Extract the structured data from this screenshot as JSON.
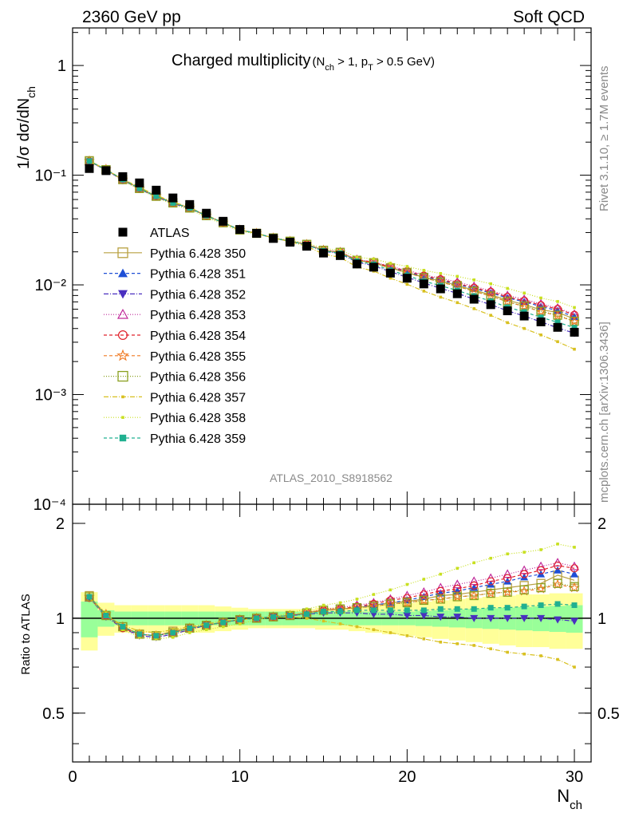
{
  "header": {
    "left": "2360 GeV pp",
    "right": "Soft QCD"
  },
  "side_labels": {
    "rivet": "Rivet 3.1.10, ≥ 1.7M events",
    "mcplots": "mcplots.cern.ch [arXiv:1306.3436]"
  },
  "chart_data": {
    "type": "scatter",
    "title": "Charged multiplicity",
    "title_cuts": "(N_ch > 1, p_T > 0.5 GeV)",
    "analysis_label": "ATLAS_2010_S8918562",
    "xlabel": "N_ch",
    "ylabel": "1/σ dσ/dN_ch",
    "ratio_ylabel": "Ratio to ATLAS",
    "xlim": [
      0,
      31
    ],
    "ylim": [
      0.0001,
      2.2
    ],
    "yscale": "log",
    "ratio_ylim": [
      0.35,
      2.3
    ],
    "x_ticks": [
      0,
      10,
      20,
      30
    ],
    "y_ticks": [
      "10⁻⁴",
      "10⁻³",
      "10⁻²",
      "10⁻¹",
      "1"
    ],
    "ratio_ticks": [
      "0.5",
      "1",
      "2"
    ],
    "legend_placement": "left-middle",
    "x": [
      1,
      2,
      3,
      4,
      5,
      6,
      7,
      8,
      9,
      10,
      11,
      12,
      13,
      14,
      15,
      16,
      17,
      18,
      19,
      20,
      21,
      22,
      23,
      24,
      25,
      26,
      27,
      28,
      29,
      30
    ],
    "data": {
      "name": "ATLAS",
      "values": [
        0.115,
        0.11,
        0.097,
        0.085,
        0.073,
        0.062,
        0.054,
        0.045,
        0.038,
        0.032,
        0.0295,
        0.0265,
        0.0245,
        0.0225,
        0.0195,
        0.0185,
        0.0155,
        0.0145,
        0.0128,
        0.0115,
        0.0102,
        0.0092,
        0.0083,
        0.0074,
        0.0066,
        0.0058,
        0.0052,
        0.0046,
        0.0041,
        0.0037
      ],
      "band_inner": [
        0.13,
        0.06,
        0.05,
        0.05,
        0.05,
        0.05,
        0.05,
        0.05,
        0.05,
        0.05,
        0.05,
        0.05,
        0.05,
        0.05,
        0.05,
        0.05,
        0.05,
        0.05,
        0.05,
        0.05,
        0.055,
        0.06,
        0.065,
        0.07,
        0.075,
        0.08,
        0.085,
        0.09,
        0.095,
        0.1
      ],
      "band_outer": [
        0.21,
        0.12,
        0.1,
        0.1,
        0.1,
        0.1,
        0.1,
        0.1,
        0.09,
        0.08,
        0.07,
        0.07,
        0.07,
        0.07,
        0.08,
        0.08,
        0.09,
        0.1,
        0.11,
        0.12,
        0.13,
        0.14,
        0.15,
        0.16,
        0.17,
        0.18,
        0.19,
        0.19,
        0.2,
        0.2
      ]
    },
    "series": [
      {
        "name": "Pythia 6.428 350",
        "color": "#b8a040",
        "marker": "square-open",
        "dash": "",
        "ratio": [
          1.18,
          1.02,
          0.94,
          0.89,
          0.88,
          0.91,
          0.93,
          0.95,
          0.97,
          0.99,
          1.0,
          1.01,
          1.02,
          1.04,
          1.06,
          1.07,
          1.08,
          1.1,
          1.12,
          1.13,
          1.15,
          1.18,
          1.19,
          1.21,
          1.23,
          1.25,
          1.27,
          1.29,
          1.37,
          1.32
        ]
      },
      {
        "name": "Pythia 6.428 351",
        "color": "#1f4fd6",
        "marker": "triangle-up",
        "dash": "4,3",
        "ratio": [
          1.17,
          1.02,
          0.94,
          0.89,
          0.88,
          0.9,
          0.93,
          0.95,
          0.97,
          0.99,
          1.0,
          1.01,
          1.02,
          1.04,
          1.06,
          1.07,
          1.08,
          1.1,
          1.12,
          1.14,
          1.17,
          1.2,
          1.22,
          1.25,
          1.28,
          1.31,
          1.35,
          1.38,
          1.42,
          1.38
        ]
      },
      {
        "name": "Pythia 6.428 352",
        "color": "#4a2fc0",
        "marker": "triangle-down",
        "dash": "6,2,1,2",
        "ratio": [
          1.16,
          1.01,
          0.93,
          0.88,
          0.87,
          0.89,
          0.92,
          0.95,
          0.97,
          0.99,
          1.0,
          1.01,
          1.02,
          1.03,
          1.04,
          1.04,
          1.04,
          1.03,
          1.03,
          1.02,
          1.02,
          1.01,
          1.01,
          1.0,
          1.0,
          1.0,
          1.0,
          1.0,
          0.99,
          0.98
        ]
      },
      {
        "name": "Pythia 6.428 353",
        "color": "#c02a9a",
        "marker": "triangle-open",
        "dash": "1,2",
        "ratio": [
          1.16,
          1.02,
          0.94,
          0.89,
          0.88,
          0.9,
          0.93,
          0.95,
          0.97,
          0.99,
          1.0,
          1.01,
          1.02,
          1.04,
          1.07,
          1.08,
          1.1,
          1.12,
          1.15,
          1.18,
          1.21,
          1.25,
          1.28,
          1.31,
          1.34,
          1.38,
          1.42,
          1.46,
          1.5,
          1.46
        ]
      },
      {
        "name": "Pythia 6.428 354",
        "color": "#e0202a",
        "marker": "circle-open",
        "dash": "4,3",
        "ratio": [
          1.16,
          1.02,
          0.93,
          0.89,
          0.88,
          0.9,
          0.93,
          0.95,
          0.97,
          0.99,
          1.0,
          1.01,
          1.02,
          1.04,
          1.06,
          1.07,
          1.09,
          1.11,
          1.14,
          1.16,
          1.19,
          1.22,
          1.24,
          1.27,
          1.31,
          1.34,
          1.38,
          1.42,
          1.47,
          1.44
        ]
      },
      {
        "name": "Pythia 6.428 355",
        "color": "#f07820",
        "marker": "star-open",
        "dash": "4,3",
        "ratio": [
          1.17,
          1.03,
          0.94,
          0.89,
          0.88,
          0.9,
          0.93,
          0.95,
          0.97,
          0.99,
          1.0,
          1.01,
          1.02,
          1.04,
          1.06,
          1.07,
          1.08,
          1.09,
          1.11,
          1.12,
          1.14,
          1.15,
          1.17,
          1.18,
          1.2,
          1.21,
          1.22,
          1.24,
          1.28,
          1.25
        ]
      },
      {
        "name": "Pythia 6.428 356",
        "color": "#8aa020",
        "marker": "square-open",
        "dash": "1,2",
        "ratio": [
          1.17,
          1.02,
          0.94,
          0.89,
          0.88,
          0.9,
          0.93,
          0.95,
          0.97,
          0.99,
          1.0,
          1.01,
          1.02,
          1.04,
          1.06,
          1.07,
          1.08,
          1.09,
          1.11,
          1.12,
          1.14,
          1.15,
          1.17,
          1.18,
          1.2,
          1.21,
          1.23,
          1.25,
          1.29,
          1.26
        ]
      },
      {
        "name": "Pythia 6.428 357",
        "color": "#d8c020",
        "marker": "dot",
        "dash": "6,2,1,2",
        "ratio": [
          1.16,
          1.02,
          0.95,
          0.91,
          0.9,
          0.92,
          0.94,
          0.96,
          0.98,
          0.99,
          1.0,
          1.01,
          1.01,
          1.0,
          0.98,
          0.96,
          0.94,
          0.92,
          0.9,
          0.88,
          0.86,
          0.84,
          0.83,
          0.82,
          0.8,
          0.78,
          0.77,
          0.76,
          0.74,
          0.7
        ]
      },
      {
        "name": "Pythia 6.428 358",
        "color": "#c8e020",
        "marker": "dot",
        "dash": "1,2",
        "ratio": [
          1.16,
          1.04,
          0.92,
          0.87,
          0.86,
          0.87,
          0.9,
          0.92,
          0.94,
          0.96,
          0.99,
          1.01,
          1.04,
          1.07,
          1.1,
          1.12,
          1.15,
          1.19,
          1.23,
          1.28,
          1.33,
          1.38,
          1.44,
          1.5,
          1.55,
          1.6,
          1.62,
          1.65,
          1.72,
          1.68
        ]
      },
      {
        "name": "Pythia 6.428 359",
        "color": "#20b090",
        "marker": "square-filled",
        "dash": "4,3",
        "ratio": [
          1.17,
          1.02,
          0.94,
          0.89,
          0.88,
          0.9,
          0.93,
          0.95,
          0.97,
          0.99,
          1.0,
          1.01,
          1.02,
          1.03,
          1.05,
          1.05,
          1.06,
          1.06,
          1.06,
          1.06,
          1.06,
          1.07,
          1.07,
          1.07,
          1.08,
          1.08,
          1.09,
          1.1,
          1.11,
          1.1
        ]
      }
    ]
  }
}
